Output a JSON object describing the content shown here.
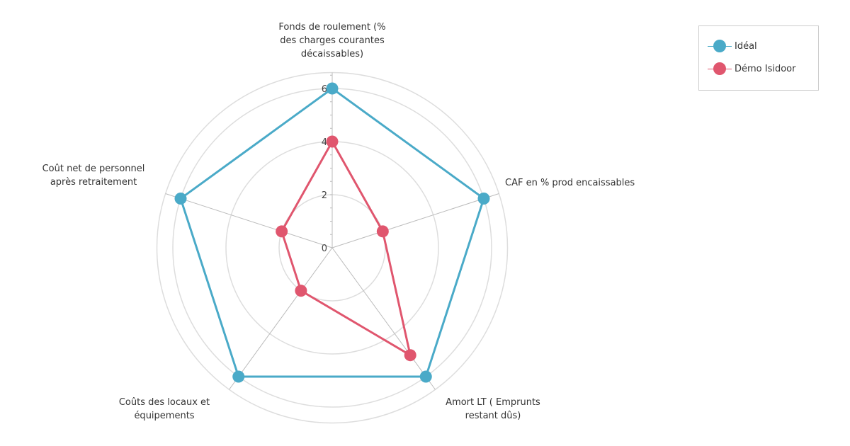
{
  "chart_data": {
    "type": "radar",
    "axes": [
      [
        "Fonds de roulement (%",
        "des charges courantes",
        "décaissables)"
      ],
      [
        "CAF en % prod encaissables"
      ],
      [
        "Amort LT ( Emprunts",
        "restant dûs)"
      ],
      [
        "Coûts des locaux et",
        "équipements"
      ],
      [
        "Coût net de personnel",
        "après retraitement"
      ]
    ],
    "rlim": [
      0,
      6.6
    ],
    "ticks": [
      "0",
      "2",
      "4",
      "6"
    ],
    "tick_values": [
      0,
      2,
      4,
      6
    ],
    "grid": true,
    "legend_position": "top-right",
    "series": [
      {
        "name": "Idéal",
        "color": "#4aaac8",
        "values": [
          6,
          6,
          6,
          6,
          6
        ]
      },
      {
        "name": "Démo Isidoor",
        "color": "#e0566e",
        "values": [
          4,
          2,
          5,
          2,
          2
        ]
      }
    ]
  }
}
